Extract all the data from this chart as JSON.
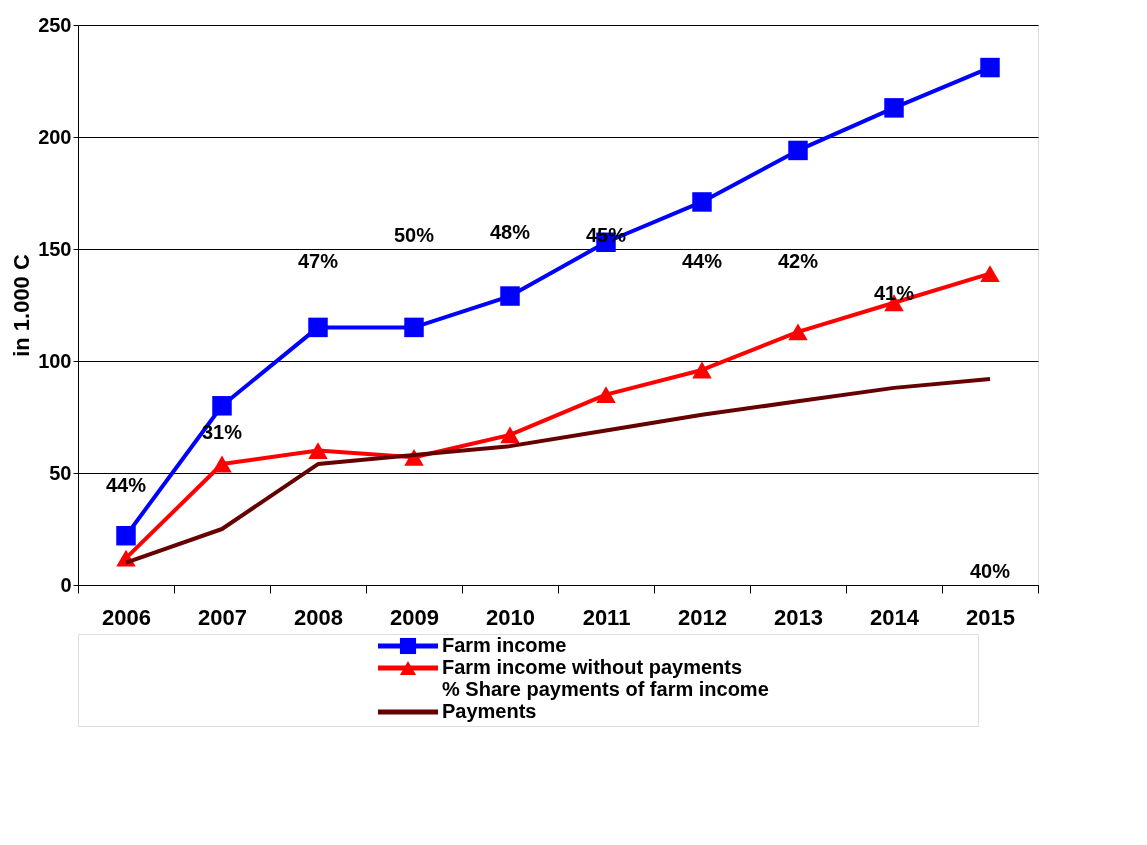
{
  "chart_data": {
    "type": "line",
    "ylabel": "in 1.000 C",
    "categories": [
      "2006",
      "2007",
      "2008",
      "2009",
      "2010",
      "2011",
      "2012",
      "2013",
      "2014",
      "2015"
    ],
    "ylim": [
      0,
      250
    ],
    "yticks": [
      0,
      50,
      100,
      150,
      200,
      250
    ],
    "grid": "y",
    "legend": "bottom",
    "series": [
      {
        "name": "Farm income",
        "color": "#0000ff",
        "marker": "square",
        "values": [
          22,
          80,
          115,
          115,
          129,
          153,
          171,
          194,
          213,
          231
        ]
      },
      {
        "name": "Farm income without payments",
        "color": "#ff0000",
        "marker": "triangle",
        "values": [
          12,
          54,
          60,
          57,
          67,
          85,
          96,
          113,
          126,
          139
        ]
      },
      {
        "name": "Payments",
        "color": "#660000",
        "marker": "none",
        "values": [
          10,
          25,
          54,
          58,
          62,
          69,
          76,
          82,
          88,
          92
        ]
      }
    ],
    "annotations": [
      "44%",
      "31%",
      "47%",
      "50%",
      "48%",
      "45%",
      "44%",
      "42%",
      "41%",
      "40%",
      "% Share payments of farm income"
    ]
  }
}
